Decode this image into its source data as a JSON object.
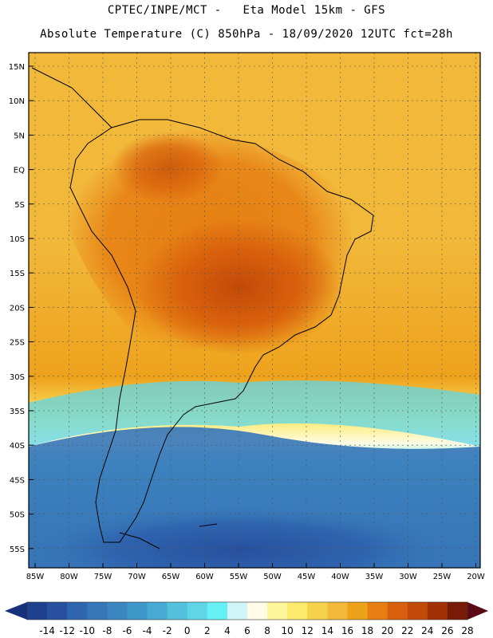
{
  "header": {
    "line1": "CPTEC/INPE/MCT -   Eta Model 15km - GFS",
    "line2": "Absolute Temperature (C) 850hPa - 18/09/2020 12UTC fct=28h"
  },
  "map": {
    "latitude_labels": [
      "15N",
      "10N",
      "5N",
      "EQ",
      "5S",
      "10S",
      "15S",
      "20S",
      "25S",
      "30S",
      "35S",
      "40S",
      "45S",
      "50S",
      "55S"
    ],
    "longitude_labels": [
      "85W",
      "80W",
      "75W",
      "70W",
      "65W",
      "60W",
      "55W",
      "50W",
      "45W",
      "40W",
      "35W",
      "30W",
      "25W",
      "20W"
    ]
  },
  "colorbar": {
    "labels": [
      "-14",
      "-12",
      "-10",
      "-8",
      "-6",
      "-4",
      "-2",
      "0",
      "2",
      "4",
      "6",
      "8",
      "10",
      "12",
      "14",
      "16",
      "18",
      "20",
      "22",
      "24",
      "26",
      "28"
    ],
    "colors": [
      "#1f3f8f",
      "#27509f",
      "#2f64ae",
      "#3776b8",
      "#3b86c0",
      "#3e97c8",
      "#47aad2",
      "#53c0dc",
      "#5fd6e8",
      "#66f0f4",
      "#d0f4f8",
      "#fffbe4",
      "#fff59a",
      "#fcea6c",
      "#f6d24a",
      "#f2b83a",
      "#eea21c",
      "#e67e12",
      "#d8600c",
      "#c24a08",
      "#a23106",
      "#781a08"
    ]
  },
  "colors": {
    "land_outline": "#000000",
    "grid": "#555555"
  }
}
